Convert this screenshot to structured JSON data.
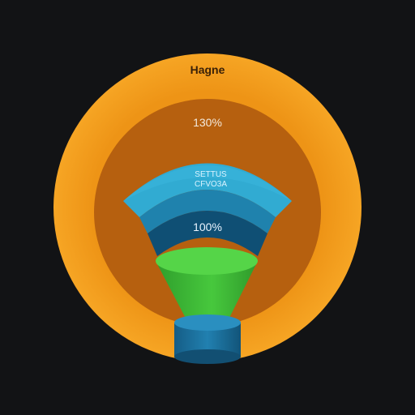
{
  "diagram": {
    "outer_label": "Hagne",
    "middle_label": "130%",
    "band_label_line1": "SETTUS",
    "band_label_line2": "CFVO3A",
    "inner_label": "100%"
  },
  "colors": {
    "background": "#121315",
    "outer_ring": "#f29a1a",
    "middle_ring": "#b9600f",
    "fan_top": "#2da6cc",
    "fan_middle": "#1f7faa",
    "fan_bottom": "#0f5176",
    "funnel": "#3fbf3a",
    "base": "#1a6f9c"
  }
}
